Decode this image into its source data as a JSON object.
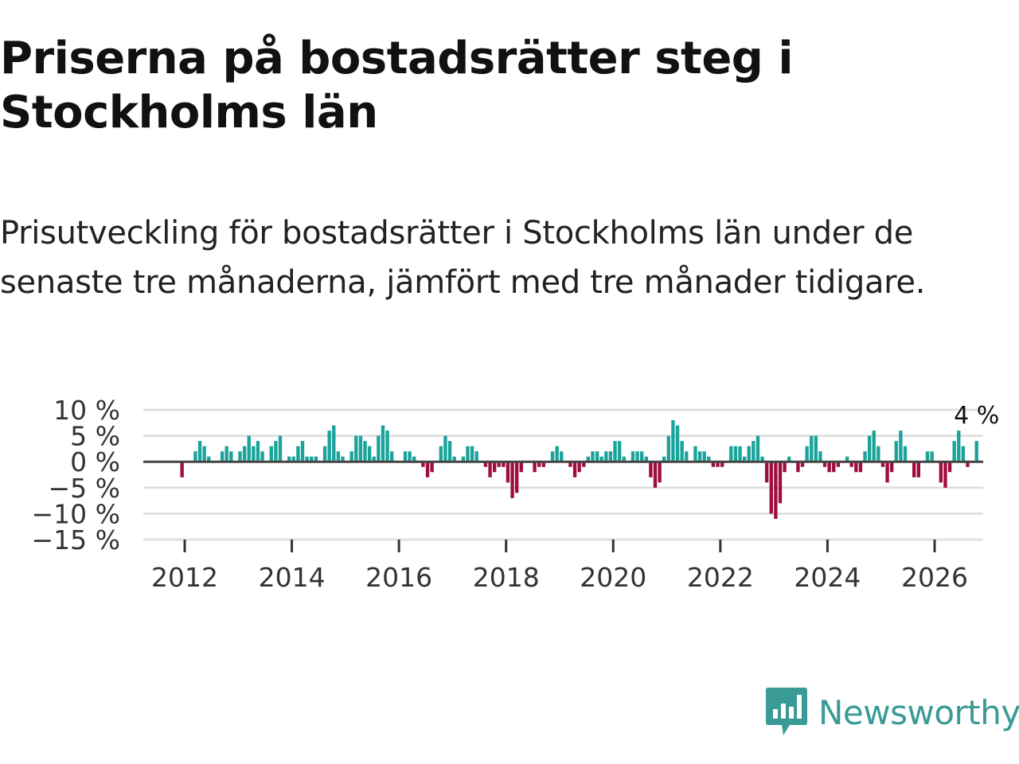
{
  "title": "Priserna på bostadsrätter steg i Stockholms län",
  "subtitle": "Prisutveckling för bostadsrätter i Stockholms län under de senaste tre månaderna, jämfört med tre månader tidigare.",
  "brand": {
    "name": "Newsworthy",
    "color": "#3a9b96",
    "icon": "newsworthy-logo-icon"
  },
  "colors": {
    "positive": "#1aa39a",
    "negative": "#9e0d40",
    "zero_line": "#444444",
    "grid": "#e0e0e0"
  },
  "chart_data": {
    "type": "bar",
    "title": "Priserna på bostadsrätter steg i Stockholms län",
    "xlabel": "",
    "ylabel": "",
    "unit": "%",
    "ylim": [
      -15,
      10
    ],
    "y_ticks": [
      10,
      5,
      0,
      -5,
      -10,
      -15
    ],
    "y_tick_labels": [
      "10 %",
      "5 %",
      "0 %",
      "−5 %",
      "−10 %",
      "−15 %"
    ],
    "x_ticks": [
      2012,
      2014,
      2016,
      2018,
      2020,
      2022,
      2024,
      2026
    ],
    "x_tick_labels": [
      "2012",
      "2014",
      "2016",
      "2018",
      "2020",
      "2022",
      "2024",
      "2026"
    ],
    "x_start": 2011.95,
    "grid": true,
    "last_value_label": "4 %",
    "series": [
      {
        "name": "Prisutveckling",
        "frequency": "monthly",
        "values": [
          -3,
          0,
          0,
          2,
          4,
          3,
          1,
          0,
          0,
          2,
          3,
          2,
          0,
          2,
          3,
          5,
          3,
          4,
          2,
          0,
          3,
          4,
          5,
          0,
          1,
          1,
          3,
          4,
          1,
          1,
          1,
          0,
          3,
          6,
          7,
          2,
          1,
          0,
          2,
          5,
          5,
          4,
          3,
          1,
          5,
          7,
          6,
          2,
          0,
          0,
          2,
          2,
          1,
          0,
          -1,
          -3,
          -2,
          0,
          3,
          5,
          4,
          1,
          0,
          1,
          3,
          3,
          2,
          0,
          -1,
          -3,
          -2,
          -1,
          -1,
          -4,
          -7,
          -6,
          -2,
          0,
          0,
          -2,
          -1,
          -1,
          0,
          2,
          3,
          2,
          0,
          -1,
          -3,
          -2,
          -1,
          1,
          2,
          2,
          1,
          2,
          2,
          4,
          4,
          1,
          0,
          2,
          2,
          2,
          1,
          -3,
          -5,
          -4,
          1,
          5,
          8,
          7,
          4,
          2,
          0,
          3,
          2,
          2,
          1,
          -1,
          -1,
          -1,
          0,
          3,
          3,
          3,
          1,
          3,
          4,
          5,
          1,
          -4,
          -10,
          -11,
          -8,
          -2,
          1,
          0,
          -2,
          -1,
          3,
          5,
          5,
          2,
          -1,
          -2,
          -2,
          -1,
          0,
          1,
          -1,
          -2,
          -2,
          2,
          5,
          6,
          3,
          -1,
          -4,
          -2,
          4,
          6,
          3,
          0,
          -3,
          -3,
          0,
          2,
          2,
          0,
          -4,
          -5,
          -2,
          4,
          6,
          3,
          -1,
          0,
          4
        ]
      }
    ]
  }
}
